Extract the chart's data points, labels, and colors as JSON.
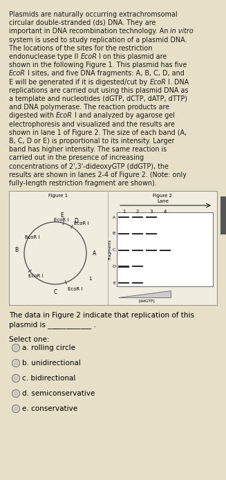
{
  "bg_color": "#e8dfc8",
  "panel_bg": "#f0ece0",
  "gel_bg": "#ffffff",
  "text_color": "#1a1a1a",
  "options": [
    "a. rolling circle",
    "b. unidirectional",
    "c. bidirectional",
    "d. semiconservative",
    "e. conservative"
  ],
  "paragraph": [
    [
      [
        "Plasmids are naturally occurring extrachromsomal",
        false
      ]
    ],
    [
      [
        "circular double-stranded (ds) DNA. They are",
        false
      ]
    ],
    [
      [
        "important in DNA recombination technology. An ",
        false
      ],
      [
        "in vitro",
        true
      ]
    ],
    [
      [
        "system is used to study replication of a plasmid DNA.",
        false
      ]
    ],
    [
      [
        "The locations of the sites for the restriction",
        false
      ]
    ],
    [
      [
        "endonuclease type II ",
        false
      ],
      [
        "EcoR",
        true
      ],
      [
        " I on this plasmid are",
        false
      ]
    ],
    [
      [
        "shown in the following Figure 1. This plasmid has five",
        false
      ]
    ],
    [
      [
        "EcoR",
        true
      ],
      [
        " I sites, and five DNA fragments: A, B, C, D, and",
        false
      ]
    ],
    [
      [
        "E will be generated if it is digested/cut by ",
        false
      ],
      [
        "EcoR",
        true
      ],
      [
        " I. DNA",
        false
      ]
    ],
    [
      [
        "replications are carried out using this plasmid DNA as",
        false
      ]
    ],
    [
      [
        "a template and nucleotides (dGTP, dCTP, dATP, dTTP)",
        false
      ]
    ],
    [
      [
        "and DNA polymerase. The reaction products are",
        false
      ]
    ],
    [
      [
        "digested with ",
        false
      ],
      [
        "EcoR",
        true
      ],
      [
        " I and analyzed by agarose gel",
        false
      ]
    ],
    [
      [
        "electrophoresis and visualized and the results are",
        false
      ]
    ],
    [
      [
        "shown in lane 1 of Figure 2. The size of each band (A,",
        false
      ]
    ],
    [
      [
        "B, C, D or E) is proportional to its intensity. Larger",
        false
      ]
    ],
    [
      [
        "band has higher intensity. The same reaction is",
        false
      ]
    ],
    [
      [
        "carried out in the presence of increasing",
        false
      ]
    ],
    [
      [
        "concentrations of 2',3'-dideoxyGTP (ddGTP), the",
        false
      ]
    ],
    [
      [
        "results are shown in lanes 2-4 of Figure 2. (Note: only",
        false
      ]
    ],
    [
      [
        "fully-length restriction fragment are shown).",
        false
      ]
    ]
  ]
}
